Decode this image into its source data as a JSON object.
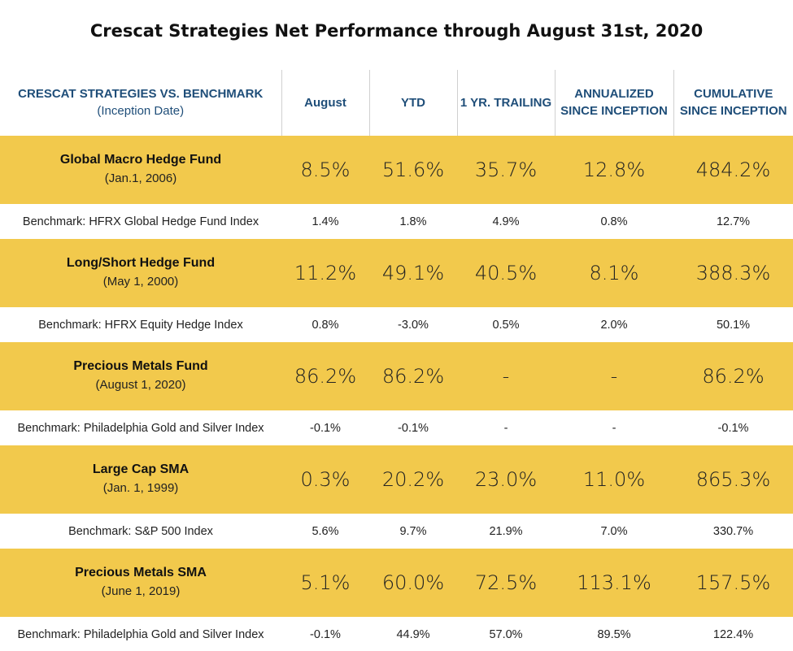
{
  "title": "Crescat Strategies Net Performance through August 31st, 2020",
  "chart_data": {
    "type": "table",
    "columns": [
      {
        "label": "CRESCAT STRATEGIES VS. BENCHMARK",
        "sub": "(Inception Date)"
      },
      {
        "label": "August"
      },
      {
        "label": "YTD"
      },
      {
        "label": "1 YR. TRAILING"
      },
      {
        "label": "ANNUALIZED SINCE INCEPTION"
      },
      {
        "label": "CUMULATIVE SINCE INCEPTION"
      }
    ],
    "rows": [
      {
        "fund": "Global Macro Hedge Fund",
        "inception": "(Jan.1, 2006)",
        "values": [
          "8.5%",
          "51.6%",
          "35.7%",
          "12.8%",
          "484.2%"
        ],
        "benchmark": "Benchmark: HFRX Global Hedge Fund Index",
        "benchmark_values": [
          "1.4%",
          "1.8%",
          "4.9%",
          "0.8%",
          "12.7%"
        ]
      },
      {
        "fund": "Long/Short Hedge Fund",
        "inception": "(May 1, 2000)",
        "values": [
          "11.2%",
          "49.1%",
          "40.5%",
          "8.1%",
          "388.3%"
        ],
        "benchmark": "Benchmark: HFRX Equity Hedge Index",
        "benchmark_values": [
          "0.8%",
          "-3.0%",
          "0.5%",
          "2.0%",
          "50.1%"
        ]
      },
      {
        "fund": "Precious Metals Fund",
        "inception": "(August 1, 2020)",
        "values": [
          "86.2%",
          "86.2%",
          "-",
          "-",
          "86.2%"
        ],
        "benchmark": "Benchmark: Philadelphia Gold and Silver Index",
        "benchmark_values": [
          "-0.1%",
          "-0.1%",
          "-",
          "-",
          "-0.1%"
        ]
      },
      {
        "fund": "Large Cap SMA",
        "inception": "(Jan. 1, 1999)",
        "values": [
          "0.3%",
          "20.2%",
          "23.0%",
          "11.0%",
          "865.3%"
        ],
        "benchmark": "Benchmark: S&P 500 Index",
        "benchmark_values": [
          "5.6%",
          "9.7%",
          "21.9%",
          "7.0%",
          "330.7%"
        ]
      },
      {
        "fund": "Precious Metals SMA",
        "inception": "(June 1, 2019)",
        "values": [
          "5.1%",
          "60.0%",
          "72.5%",
          "113.1%",
          "157.5%"
        ],
        "benchmark": "Benchmark: Philadelphia Gold and Silver Index",
        "benchmark_values": [
          "-0.1%",
          "44.9%",
          "57.0%",
          "89.5%",
          "122.4%"
        ]
      }
    ],
    "colors": {
      "fund_row": "#f2c94c",
      "header_text": "#1f4e79",
      "benchmark_row": "#ffffff"
    }
  }
}
